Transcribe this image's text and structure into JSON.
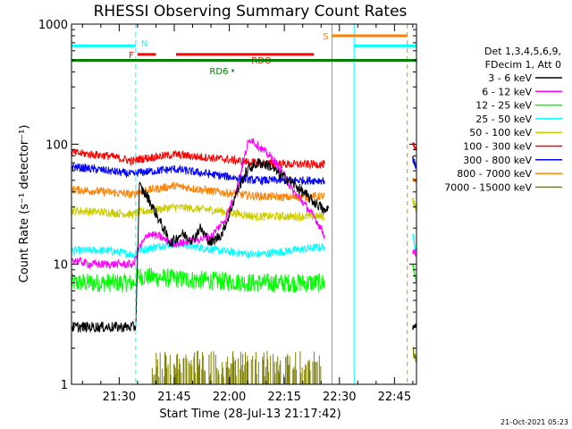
{
  "chart_data": {
    "type": "line",
    "title": "RHESSI Observing Summary Count Rates",
    "xlabel": "Start Time (28-Jul-13 21:17:42)",
    "ylabel": "Count Rate (s⁻¹ detector⁻¹)",
    "x_unit": "minutes since 21:17:42",
    "xlim": [
      0,
      94
    ],
    "ylim": [
      1,
      1000
    ],
    "yscale": "log",
    "x_ticks": [
      {
        "x": 13,
        "label": "21:30"
      },
      {
        "x": 28,
        "label": "21:45"
      },
      {
        "x": 43,
        "label": "22:00"
      },
      {
        "x": 58,
        "label": "22:15"
      },
      {
        "x": 73,
        "label": "22:30"
      },
      {
        "x": 88,
        "label": "22:45"
      }
    ],
    "y_ticks": [
      {
        "y": 1,
        "label": "1"
      },
      {
        "y": 10,
        "label": "10"
      },
      {
        "y": 100,
        "label": "100"
      },
      {
        "y": 1000,
        "label": "1000"
      }
    ],
    "legend_header": [
      "Det 1,3,4,5,6,9,",
      "FDecim 1, Att 0"
    ],
    "legend_position": "right",
    "timestamp": "21-Oct-2021 05:23",
    "series": [
      {
        "name": "3 - 6 keV",
        "color": "#000000",
        "points": [
          [
            0,
            3
          ],
          [
            17.5,
            3
          ],
          [
            18.5,
            45
          ],
          [
            21,
            35
          ],
          [
            25,
            20
          ],
          [
            27,
            15
          ],
          [
            30,
            18
          ],
          [
            33,
            16
          ],
          [
            35,
            20
          ],
          [
            38,
            15
          ],
          [
            41,
            18
          ],
          [
            43,
            26
          ],
          [
            45,
            40
          ],
          [
            48,
            62
          ],
          [
            51,
            70
          ],
          [
            54,
            66
          ],
          [
            57,
            55
          ],
          [
            60,
            48
          ],
          [
            63,
            40
          ],
          [
            66,
            33
          ],
          [
            68,
            30
          ],
          [
            69,
            27
          ],
          [
            70,
            30
          ]
        ],
        "tail": [
          [
            93,
            3
          ],
          [
            94,
            3
          ]
        ]
      },
      {
        "name": "6 - 12 keV",
        "color": "#ff00ff",
        "points": [
          [
            0,
            11
          ],
          [
            5,
            10
          ],
          [
            10,
            10
          ],
          [
            17,
            10
          ],
          [
            18,
            13
          ],
          [
            21,
            18
          ],
          [
            24,
            17
          ],
          [
            27,
            15
          ],
          [
            30,
            15
          ],
          [
            34,
            16
          ],
          [
            38,
            17
          ],
          [
            42,
            24
          ],
          [
            45,
            42
          ],
          [
            47,
            75
          ],
          [
            48,
            100
          ],
          [
            49,
            112
          ],
          [
            50,
            102
          ],
          [
            52,
            90
          ],
          [
            55,
            75
          ],
          [
            58,
            55
          ],
          [
            60,
            42
          ],
          [
            63,
            33
          ],
          [
            66,
            25
          ],
          [
            68,
            20
          ],
          [
            69,
            17
          ]
        ],
        "tail": [
          [
            93,
            13
          ],
          [
            94,
            12
          ]
        ]
      },
      {
        "name": "12 - 25 keV",
        "color": "#00ff00",
        "points": [
          [
            0,
            7
          ],
          [
            10,
            7
          ],
          [
            17,
            7
          ],
          [
            18,
            8
          ],
          [
            30,
            7.5
          ],
          [
            50,
            7
          ],
          [
            69,
            7
          ]
        ],
        "tail": [
          [
            93,
            10
          ],
          [
            94,
            7
          ]
        ]
      },
      {
        "name": "25 - 50 keV",
        "color": "#00ffff",
        "points": [
          [
            0,
            13
          ],
          [
            10,
            13
          ],
          [
            17,
            12
          ],
          [
            18,
            13
          ],
          [
            28,
            15
          ],
          [
            40,
            13
          ],
          [
            50,
            12
          ],
          [
            69,
            14
          ]
        ],
        "tail": [
          [
            93,
            17
          ],
          [
            94,
            13
          ]
        ]
      },
      {
        "name": "50 - 100 keV",
        "color": "#cccc00",
        "points": [
          [
            0,
            28
          ],
          [
            10,
            27
          ],
          [
            17,
            26
          ],
          [
            18,
            27
          ],
          [
            28,
            30
          ],
          [
            40,
            28
          ],
          [
            50,
            25
          ],
          [
            69,
            25
          ]
        ],
        "tail": [
          [
            93,
            35
          ],
          [
            94,
            28
          ]
        ]
      },
      {
        "name": "100 - 300 keV",
        "color": "#ff0000",
        "points": [
          [
            0,
            85
          ],
          [
            10,
            80
          ],
          [
            17,
            72
          ],
          [
            18,
            75
          ],
          [
            28,
            82
          ],
          [
            40,
            76
          ],
          [
            50,
            70
          ],
          [
            60,
            68
          ],
          [
            69,
            68
          ]
        ],
        "tail": [
          [
            93,
            100
          ],
          [
            94,
            85
          ]
        ]
      },
      {
        "name": "300 - 800 keV",
        "color": "#0000ff",
        "points": [
          [
            0,
            65
          ],
          [
            10,
            60
          ],
          [
            17,
            56
          ],
          [
            18,
            58
          ],
          [
            28,
            62
          ],
          [
            40,
            55
          ],
          [
            50,
            50
          ],
          [
            60,
            50
          ],
          [
            69,
            50
          ]
        ],
        "tail": [
          [
            93,
            75
          ],
          [
            94,
            65
          ]
        ]
      },
      {
        "name": "800 - 7000 keV",
        "color": "#ff8000",
        "points": [
          [
            0,
            42
          ],
          [
            10,
            40
          ],
          [
            17,
            38
          ],
          [
            18,
            40
          ],
          [
            28,
            45
          ],
          [
            40,
            40
          ],
          [
            50,
            37
          ],
          [
            60,
            36
          ],
          [
            69,
            37
          ]
        ],
        "tail": [
          [
            93,
            50
          ],
          [
            94,
            48
          ]
        ]
      },
      {
        "name": "7000 - 15000 keV",
        "color": "#808000",
        "points": [
          [
            22,
            1.8
          ],
          [
            42,
            1.7
          ],
          [
            60,
            1.6
          ],
          [
            68,
            1.9
          ]
        ],
        "tail": [
          [
            93,
            1.9
          ],
          [
            94,
            1.7
          ]
        ]
      }
    ],
    "flags": [
      {
        "label": "N",
        "color": "#00ffff",
        "x_start": 0,
        "x_end": 17.5,
        "y": 660
      },
      {
        "label": "",
        "color": "#00ffff",
        "x_start": 77,
        "x_end": 94,
        "y": 660
      },
      {
        "label": "F",
        "color": "#ff0000",
        "x_start": 18,
        "x_end": 23,
        "y": 560
      },
      {
        "label": "RDO",
        "color": "#ff0000",
        "x_start": 28.5,
        "x_end": 66,
        "y": 560
      },
      {
        "label": "S",
        "color": "#ff8000",
        "x_start": 71,
        "x_end": 91.5,
        "y": 800
      },
      {
        "label": "",
        "color": "#008000",
        "x_start": 0,
        "x_end": 94,
        "y": 500
      },
      {
        "label": "RD6",
        "color": "#008000",
        "x_start": 43.7,
        "x_end": 44.2,
        "y": 410
      }
    ],
    "vertical_markers": [
      {
        "x": 0,
        "color": "#00ffff",
        "style": "solid"
      },
      {
        "x": 17.5,
        "color": "#00ffff",
        "style": "dashed"
      },
      {
        "x": 71,
        "color": "#ff8000",
        "style": "solid"
      },
      {
        "x": 77,
        "color": "#00ffff",
        "style": "solid"
      },
      {
        "x": 91.5,
        "color": "#ff8000",
        "style": "dashed"
      },
      {
        "x": 94,
        "color": "#00ffff",
        "style": "dashed"
      }
    ]
  }
}
